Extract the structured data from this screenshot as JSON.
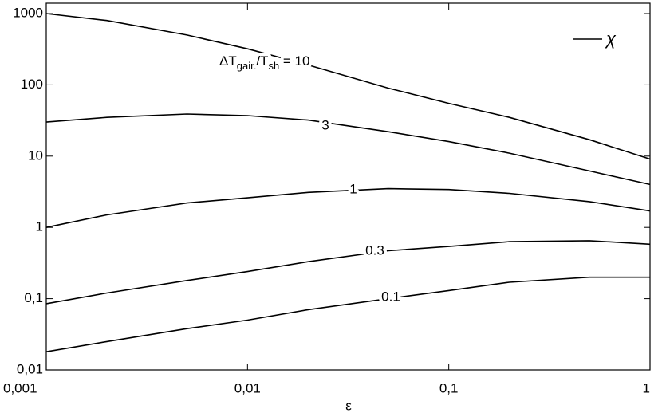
{
  "chart_data": {
    "type": "line",
    "x_label": "ε",
    "x": [
      0.001,
      0.002,
      0.005,
      0.01,
      0.02,
      0.05,
      0.1,
      0.2,
      0.5,
      1
    ],
    "series": [
      {
        "label_parts": [
          "ΔT",
          "gain",
          "/T",
          "sh",
          " = 10"
        ],
        "color": "#000000",
        "values": [
          1000,
          800,
          500,
          320,
          190,
          90,
          55,
          35,
          17,
          9.1
        ]
      },
      {
        "label": "3",
        "color": "#000000",
        "values": [
          30,
          35,
          39,
          37,
          32,
          22,
          16,
          11,
          6.2,
          4.0
        ]
      },
      {
        "label": "1",
        "color": "#000000",
        "values": [
          1,
          1.5,
          2.2,
          2.6,
          3.1,
          3.5,
          3.4,
          3.0,
          2.3,
          1.7
        ]
      },
      {
        "label": "0.3",
        "color": "#000000",
        "values": [
          0.085,
          0.12,
          0.18,
          0.24,
          0.33,
          0.47,
          0.54,
          0.63,
          0.65,
          0.58
        ]
      },
      {
        "label": "0.1",
        "color": "#000000",
        "values": [
          0.018,
          0.025,
          0.038,
          0.05,
          0.07,
          0.1,
          0.13,
          0.17,
          0.2,
          0.2
        ]
      }
    ],
    "legend": {
      "label": "χ",
      "position": "upper right"
    },
    "xscale": "log",
    "yscale": "log",
    "xlim": [
      0.001,
      1
    ],
    "xticks": [
      {
        "value": 0.001,
        "label": "0,001"
      },
      {
        "value": 0.01,
        "label": "0,01"
      },
      {
        "value": 0.1,
        "label": "0,1"
      },
      1
    ],
    "ylim": [
      0.01,
      1000
    ],
    "yticks": [
      {
        "value": 0.01,
        "label": "0,01"
      },
      {
        "value": 0.1,
        "label": "0,1"
      },
      1,
      10,
      100,
      1000
    ]
  }
}
